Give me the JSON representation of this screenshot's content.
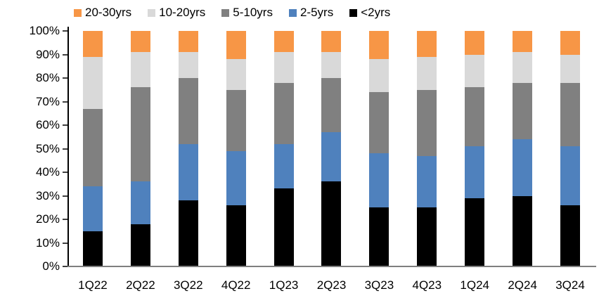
{
  "chart_data": {
    "type": "bar",
    "variant": "stacked-100-percent",
    "categories": [
      "1Q22",
      "2Q22",
      "3Q22",
      "4Q22",
      "1Q23",
      "2Q23",
      "3Q23",
      "4Q23",
      "1Q24",
      "2Q24",
      "3Q24"
    ],
    "series": [
      {
        "name": "<2yrs",
        "color": "#000000",
        "values": [
          15,
          18,
          28,
          26,
          33,
          36,
          25,
          25,
          29,
          30,
          26
        ]
      },
      {
        "name": "2-5yrs",
        "color": "#4F81BD",
        "values": [
          19,
          18,
          24,
          23,
          19,
          21,
          23,
          22,
          22,
          24,
          25
        ]
      },
      {
        "name": "5-10yrs",
        "color": "#808080",
        "values": [
          33,
          40,
          28,
          26,
          26,
          23,
          26,
          28,
          25,
          24,
          27
        ]
      },
      {
        "name": "10-20yrs",
        "color": "#D9D9D9",
        "values": [
          22,
          15,
          11,
          13,
          13,
          11,
          14,
          14,
          14,
          13,
          12
        ]
      },
      {
        "name": "20-30yrs",
        "color": "#F79646",
        "values": [
          11,
          9,
          9,
          12,
          9,
          9,
          12,
          11,
          10,
          9,
          10
        ]
      }
    ],
    "legend_order": [
      "20-30yrs",
      "10-20yrs",
      "5-10yrs",
      "2-5yrs",
      "<2yrs"
    ],
    "legend_position": "top",
    "ylim": [
      0,
      100
    ],
    "ytick_step": 10,
    "ytick_labels": [
      "0%",
      "10%",
      "20%",
      "30%",
      "40%",
      "50%",
      "60%",
      "70%",
      "80%",
      "90%",
      "100%"
    ],
    "grid": false,
    "axis_colors": {
      "y_axis_line": "#000000",
      "x_axis_line": "#7f7f7f",
      "tick": "#404040"
    }
  }
}
